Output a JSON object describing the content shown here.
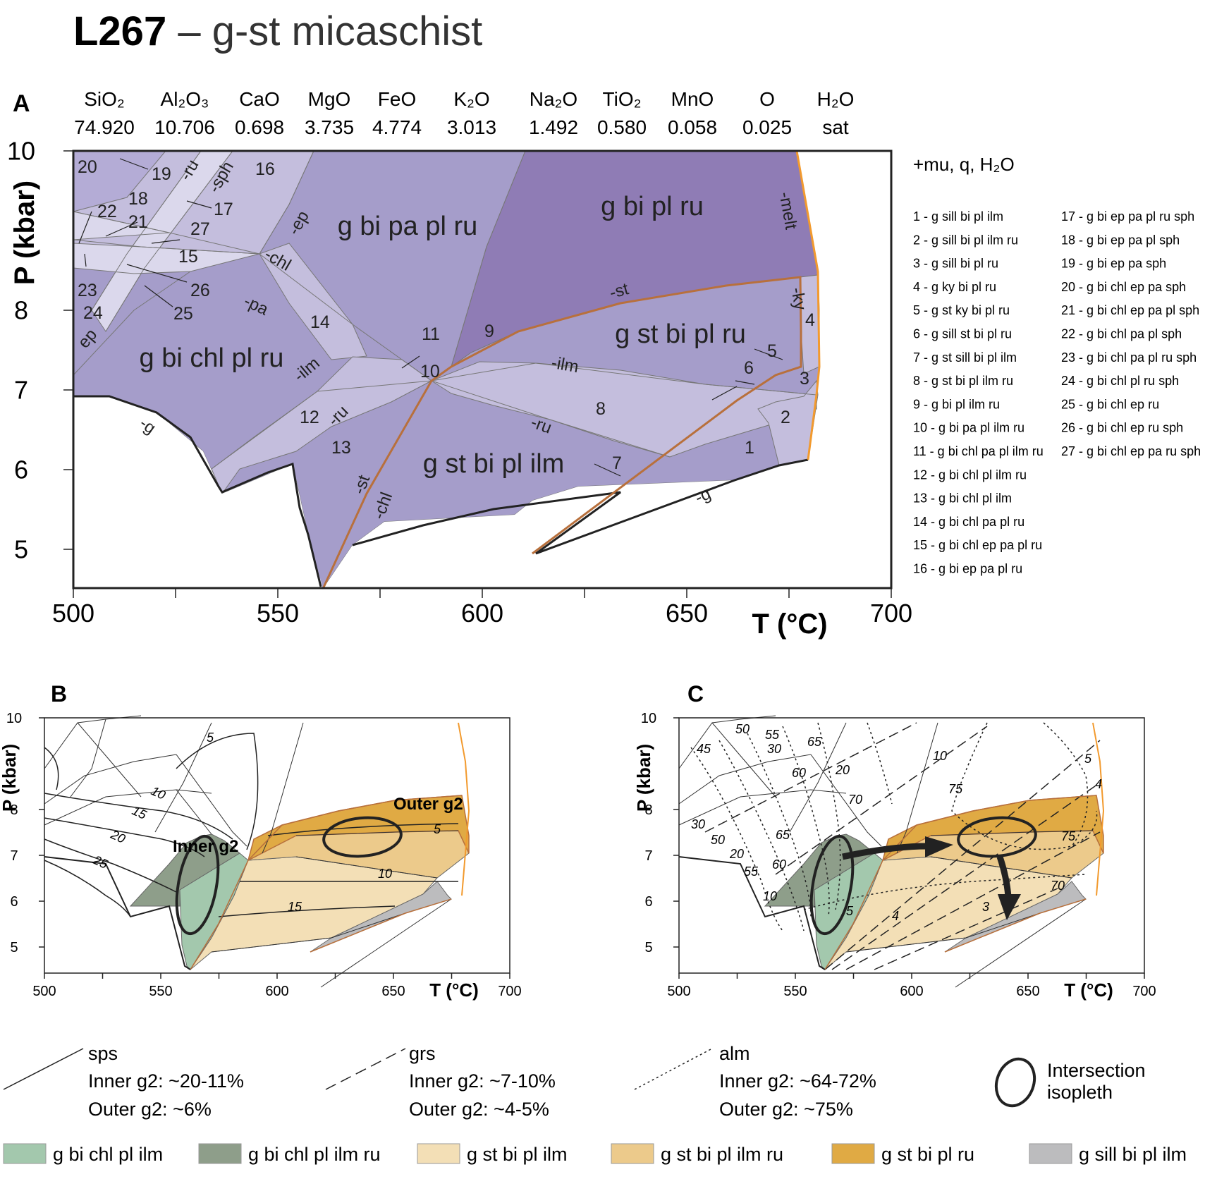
{
  "title": {
    "sample": "L267",
    "rest": " – g-st micaschist"
  },
  "panel_a": {
    "label": "A",
    "composition": {
      "oxides": [
        "SiO₂",
        "Al₂O₃",
        "CaO",
        "MgO",
        "FeO",
        "K₂O",
        "Na₂O",
        "TiO₂",
        "MnO",
        "O",
        "H₂O"
      ],
      "values": [
        "74.920",
        "10.706",
        "0.698",
        "3.735",
        "4.774",
        "3.013",
        "1.492",
        "0.580",
        "0.058",
        "0.025",
        "sat"
      ]
    },
    "ylabel": "P (kbar)",
    "xlabel": "T (°C)",
    "x_ticks": [
      "500",
      "550",
      "600",
      "650",
      "700"
    ],
    "y_ticks": [
      "10",
      "8",
      "7",
      "6",
      "5"
    ],
    "excess_phases": "+mu, q, H₂O",
    "field_names": [
      "g bi pa pl ru",
      "g bi pl ru",
      "g st bi pl ru",
      "g bi chl pl ru",
      "g st bi pl ilm"
    ],
    "field_numbers": [
      "20",
      "19",
      "18",
      "16",
      "22",
      "21",
      "17",
      "27",
      "15",
      "23",
      "26",
      "24",
      "25",
      "14",
      "11",
      "9",
      "10",
      "12",
      "13",
      "8",
      "7",
      "6",
      "5",
      "4",
      "3",
      "2",
      "1"
    ],
    "reaction_labels": [
      "-ru",
      "-sph",
      "-ep",
      "-chl",
      "-pa",
      "-ilm",
      "-ru",
      "-st",
      "-chl",
      "-melt",
      "-ky",
      "-st",
      "-ilm",
      "-ru",
      "-g",
      "-g",
      "ep"
    ],
    "legend_col1": [
      "1 - g sill bi pl ilm",
      "2 - g sill bi pl ilm ru",
      "3 - g sill bi pl ru",
      "4 - g ky bi pl ru",
      "5 - g st ky bi pl ru",
      "6 - g sill st bi pl ru",
      "7 - g st sill bi pl ilm",
      "8 - g st bi pl ilm ru",
      "9 - g bi pl ilm ru",
      "10 - g bi pa pl ilm ru",
      "11 - g bi chl pa pl ilm ru",
      "12 - g bi chl pl ilm ru",
      "13 - g bi chl pl ilm",
      "14 - g bi chl pa pl ru",
      "15 - g bi chl ep pa pl ru",
      "16 - g bi ep pa pl ru"
    ],
    "legend_col2": [
      "17 - g bi ep pa pl ru sph",
      "18 - g bi ep pa pl sph",
      "19 - g bi ep pa sph",
      "20 - g bi chl ep pa sph",
      "21 - g bi chl ep pa pl sph",
      "22 - g bi chl pa pl sph",
      "23 - g bi chl pa pl ru sph",
      "24 - g bi chl pl ru sph",
      "25 - g bi chl ep ru",
      "26 - g bi chl ep ru sph",
      "27 - g bi chl ep pa ru sph"
    ]
  },
  "panel_b": {
    "label": "B",
    "ylabel": "P (kbar)",
    "xlabel": "T (°C)",
    "x_ticks": [
      "500",
      "550",
      "600",
      "650",
      "700"
    ],
    "y_ticks": [
      "10",
      "8",
      "7",
      "6",
      "5"
    ],
    "sps_labels": [
      "5",
      "10",
      "15",
      "20",
      "25",
      "5",
      "10",
      "15"
    ],
    "inner_label": "Inner g2",
    "outer_label": "Outer g2"
  },
  "panel_c": {
    "label": "C",
    "ylabel": "P (kbar)",
    "xlabel": "T (°C)",
    "x_ticks": [
      "500",
      "550",
      "600",
      "650",
      "700"
    ],
    "y_ticks": [
      "10",
      "8",
      "7",
      "6",
      "5"
    ],
    "iso_labels": [
      "45",
      "50",
      "55",
      "30",
      "60",
      "65",
      "20",
      "70",
      "10",
      "75",
      "5",
      "4",
      "30",
      "50",
      "20",
      "65",
      "60",
      "55",
      "10",
      "75",
      "70",
      "5",
      "4",
      "3"
    ]
  },
  "isopleth_legend": {
    "sps": {
      "name": "sps",
      "inner": "Inner g2: ~20-11%",
      "outer": "Outer g2: ~6%"
    },
    "grs": {
      "name": "grs",
      "inner": "Inner g2: ~7-10%",
      "outer": "Outer g2: ~4-5%"
    },
    "alm": {
      "name": "alm",
      "inner": "Inner g2: ~64-72%",
      "outer": "Outer g2: ~75%"
    },
    "intersection": [
      "Intersection",
      "isopleth"
    ]
  },
  "color_legend": [
    {
      "label": "g bi chl pl ilm",
      "color": "#a3c8ad"
    },
    {
      "label": "g bi chl pl ilm ru",
      "color": "#8e9e8a"
    },
    {
      "label": "g st bi pl ilm",
      "color": "#f3dfb6"
    },
    {
      "label": "g st bi pl ilm ru",
      "color": "#ecca8b"
    },
    {
      "label": "g st bi pl ru",
      "color": "#e0aa44"
    },
    {
      "label": "g sill bi pl ilm",
      "color": "#bcbcbe"
    }
  ],
  "colors": {
    "dark": "#8f7cb5",
    "mid": "#a59dca",
    "light": "#c4bedd",
    "pale": "#dbd8ec",
    "melt": "#f29a2e",
    "st": "#b8703c"
  }
}
